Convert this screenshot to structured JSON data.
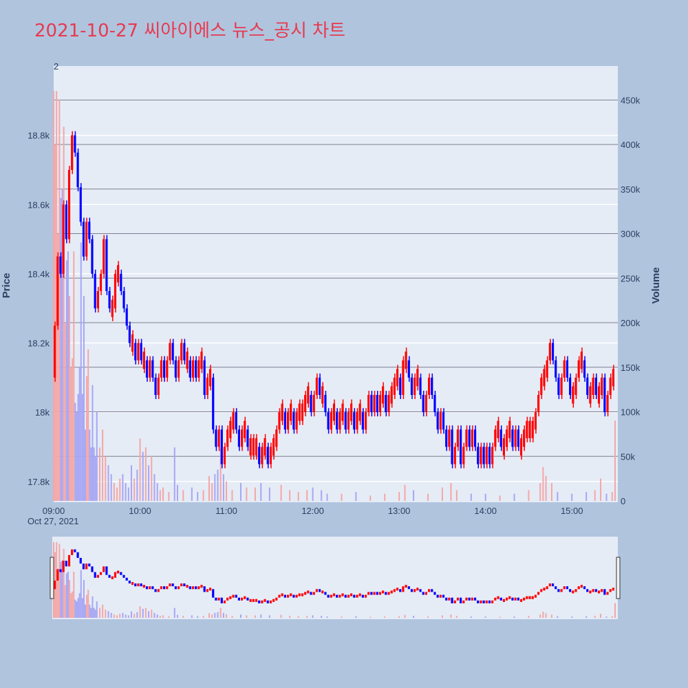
{
  "title": "2021-10-27 씨아이에스 뉴스_공시 차트",
  "colors": {
    "background": "#b0c4de",
    "plot_bg": "#e5ecf6",
    "up": "#ff0000",
    "down": "#0000ff",
    "up_volume": "#f4a6a6",
    "down_volume": "#a6a6f4",
    "title": "#e8394f",
    "grid_secondary": "#7f7f8f"
  },
  "chart_data": {
    "type": "candlestick",
    "title": "2021-10-27 씨아이에스 뉴스_공시 차트",
    "ylabel": "Price",
    "y2label": "Volume",
    "ylim": [
      17740,
      19000
    ],
    "y2lim": [
      0,
      485000
    ],
    "yticks": [
      17800,
      18000,
      18200,
      18400,
      18600,
      18800
    ],
    "ytick_labels": [
      "17.8k",
      "18k",
      "18.2k",
      "18.4k",
      "18.6k",
      "18.8k"
    ],
    "y2ticks": [
      0,
      50000,
      100000,
      150000,
      200000,
      250000,
      300000,
      350000,
      400000,
      450000
    ],
    "y2tick_labels": [
      "0",
      "50k",
      "100k",
      "150k",
      "200k",
      "250k",
      "300k",
      "350k",
      "400k",
      "450k"
    ],
    "xticks": [
      "09:00",
      "10:00",
      "11:00",
      "12:00",
      "13:00",
      "14:00",
      "15:00"
    ],
    "xdate": "Oct 27, 2021",
    "corner_label": "2",
    "xrange_minutes": [
      0,
      390
    ],
    "close_path": [
      [
        0,
        18100
      ],
      [
        2,
        18250
      ],
      [
        4,
        18450
      ],
      [
        6,
        18400
      ],
      [
        8,
        18600
      ],
      [
        10,
        18500
      ],
      [
        12,
        18700
      ],
      [
        14,
        18800
      ],
      [
        16,
        18750
      ],
      [
        18,
        18650
      ],
      [
        20,
        18550
      ],
      [
        22,
        18450
      ],
      [
        24,
        18550
      ],
      [
        26,
        18500
      ],
      [
        28,
        18400
      ],
      [
        30,
        18300
      ],
      [
        32,
        18350
      ],
      [
        34,
        18400
      ],
      [
        36,
        18500
      ],
      [
        38,
        18350
      ],
      [
        40,
        18300
      ],
      [
        42,
        18300
      ],
      [
        44,
        18400
      ],
      [
        46,
        18400
      ],
      [
        48,
        18350
      ],
      [
        50,
        18300
      ],
      [
        52,
        18250
      ],
      [
        54,
        18200
      ],
      [
        56,
        18200
      ],
      [
        58,
        18150
      ],
      [
        60,
        18200
      ],
      [
        62,
        18150
      ],
      [
        64,
        18150
      ],
      [
        66,
        18100
      ],
      [
        68,
        18150
      ],
      [
        70,
        18100
      ],
      [
        72,
        18050
      ],
      [
        74,
        18100
      ],
      [
        76,
        18150
      ],
      [
        78,
        18100
      ],
      [
        80,
        18150
      ],
      [
        82,
        18200
      ],
      [
        84,
        18150
      ],
      [
        86,
        18100
      ],
      [
        88,
        18150
      ],
      [
        90,
        18200
      ],
      [
        92,
        18150
      ],
      [
        94,
        18150
      ],
      [
        96,
        18100
      ],
      [
        98,
        18150
      ],
      [
        100,
        18100
      ],
      [
        102,
        18150
      ],
      [
        104,
        18150
      ],
      [
        106,
        18050
      ],
      [
        108,
        18100
      ],
      [
        110,
        18100
      ],
      [
        112,
        17950
      ],
      [
        114,
        17900
      ],
      [
        116,
        17950
      ],
      [
        118,
        17850
      ],
      [
        120,
        17900
      ],
      [
        122,
        17950
      ],
      [
        124,
        17950
      ],
      [
        126,
        18000
      ],
      [
        128,
        17950
      ],
      [
        130,
        17900
      ],
      [
        132,
        17950
      ],
      [
        134,
        17950
      ],
      [
        136,
        17900
      ],
      [
        138,
        17900
      ],
      [
        140,
        17900
      ],
      [
        142,
        17900
      ],
      [
        144,
        17850
      ],
      [
        146,
        17900
      ],
      [
        148,
        17900
      ],
      [
        150,
        17850
      ],
      [
        152,
        17900
      ],
      [
        154,
        17900
      ],
      [
        156,
        17950
      ],
      [
        158,
        18000
      ],
      [
        160,
        18000
      ],
      [
        162,
        17950
      ],
      [
        164,
        18000
      ],
      [
        166,
        18000
      ],
      [
        168,
        17950
      ],
      [
        170,
        18000
      ],
      [
        172,
        18000
      ],
      [
        174,
        18000
      ],
      [
        176,
        18050
      ],
      [
        178,
        18050
      ],
      [
        180,
        18000
      ],
      [
        182,
        18050
      ],
      [
        184,
        18100
      ],
      [
        186,
        18050
      ],
      [
        188,
        18050
      ],
      [
        190,
        18000
      ],
      [
        192,
        17950
      ],
      [
        194,
        18000
      ],
      [
        196,
        18000
      ],
      [
        198,
        17950
      ],
      [
        200,
        18000
      ],
      [
        202,
        18000
      ],
      [
        204,
        17950
      ],
      [
        206,
        18000
      ],
      [
        208,
        18000
      ],
      [
        210,
        17950
      ],
      [
        212,
        18000
      ],
      [
        214,
        18000
      ],
      [
        216,
        17950
      ],
      [
        218,
        18000
      ],
      [
        220,
        18050
      ],
      [
        222,
        18000
      ],
      [
        224,
        18050
      ],
      [
        226,
        18000
      ],
      [
        228,
        18050
      ],
      [
        230,
        18050
      ],
      [
        232,
        18000
      ],
      [
        234,
        18050
      ],
      [
        236,
        18050
      ],
      [
        238,
        18100
      ],
      [
        240,
        18100
      ],
      [
        242,
        18050
      ],
      [
        244,
        18150
      ],
      [
        246,
        18150
      ],
      [
        248,
        18100
      ],
      [
        250,
        18050
      ],
      [
        252,
        18100
      ],
      [
        254,
        18100
      ],
      [
        256,
        18050
      ],
      [
        258,
        18000
      ],
      [
        260,
        18050
      ],
      [
        262,
        18100
      ],
      [
        264,
        18050
      ],
      [
        266,
        18000
      ],
      [
        268,
        17950
      ],
      [
        270,
        18000
      ],
      [
        272,
        17950
      ],
      [
        274,
        17900
      ],
      [
        276,
        17950
      ],
      [
        278,
        17850
      ],
      [
        280,
        17900
      ],
      [
        282,
        17950
      ],
      [
        284,
        17850
      ],
      [
        286,
        17900
      ],
      [
        288,
        17950
      ],
      [
        290,
        17900
      ],
      [
        292,
        17950
      ],
      [
        294,
        17900
      ],
      [
        296,
        17850
      ],
      [
        298,
        17900
      ],
      [
        300,
        17850
      ],
      [
        302,
        17900
      ],
      [
        304,
        17850
      ],
      [
        306,
        17900
      ],
      [
        308,
        17950
      ],
      [
        310,
        17950
      ],
      [
        312,
        17900
      ],
      [
        314,
        17900
      ],
      [
        316,
        17950
      ],
      [
        318,
        17950
      ],
      [
        320,
        17900
      ],
      [
        322,
        17950
      ],
      [
        324,
        17900
      ],
      [
        326,
        17900
      ],
      [
        328,
        17950
      ],
      [
        330,
        17950
      ],
      [
        332,
        17950
      ],
      [
        334,
        17950
      ],
      [
        336,
        18000
      ],
      [
        338,
        18050
      ],
      [
        340,
        18100
      ],
      [
        342,
        18100
      ],
      [
        344,
        18150
      ],
      [
        346,
        18200
      ],
      [
        348,
        18150
      ],
      [
        350,
        18100
      ],
      [
        352,
        18050
      ],
      [
        354,
        18100
      ],
      [
        356,
        18150
      ],
      [
        358,
        18100
      ],
      [
        360,
        18050
      ],
      [
        362,
        18050
      ],
      [
        364,
        18100
      ],
      [
        366,
        18150
      ],
      [
        368,
        18150
      ],
      [
        370,
        18100
      ],
      [
        372,
        18050
      ],
      [
        374,
        18050
      ],
      [
        376,
        18100
      ],
      [
        378,
        18050
      ],
      [
        380,
        18050
      ],
      [
        382,
        18100
      ],
      [
        384,
        18000
      ],
      [
        386,
        18050
      ],
      [
        388,
        18100
      ],
      [
        390,
        18100
      ]
    ],
    "volume_spikes": [
      [
        0,
        460000
      ],
      [
        1,
        400000
      ],
      [
        2,
        460000
      ],
      [
        3,
        300000
      ],
      [
        4,
        450000
      ],
      [
        5,
        340000
      ],
      [
        6,
        350000
      ],
      [
        7,
        420000
      ],
      [
        8,
        200000
      ],
      [
        9,
        270000
      ],
      [
        10,
        280000
      ],
      [
        11,
        230000
      ],
      [
        12,
        150000
      ],
      [
        13,
        160000
      ],
      [
        14,
        280000
      ],
      [
        15,
        110000
      ],
      [
        16,
        100000
      ],
      [
        17,
        120000
      ],
      [
        18,
        150000
      ],
      [
        19,
        290000
      ],
      [
        20,
        120000
      ],
      [
        21,
        230000
      ],
      [
        22,
        80000
      ],
      [
        23,
        140000
      ],
      [
        24,
        170000
      ],
      [
        25,
        80000
      ],
      [
        26,
        60000
      ],
      [
        27,
        130000
      ],
      [
        28,
        60000
      ],
      [
        29,
        50000
      ],
      [
        30,
        100000
      ],
      [
        32,
        60000
      ],
      [
        34,
        80000
      ],
      [
        36,
        50000
      ],
      [
        38,
        40000
      ],
      [
        40,
        30000
      ],
      [
        42,
        20000
      ],
      [
        44,
        15000
      ],
      [
        46,
        25000
      ],
      [
        48,
        30000
      ],
      [
        50,
        20000
      ],
      [
        52,
        15000
      ],
      [
        54,
        40000
      ],
      [
        56,
        25000
      ],
      [
        58,
        35000
      ],
      [
        60,
        70000
      ],
      [
        62,
        55000
      ],
      [
        64,
        60000
      ],
      [
        66,
        40000
      ],
      [
        68,
        50000
      ],
      [
        70,
        30000
      ],
      [
        72,
        20000
      ],
      [
        74,
        12000
      ],
      [
        76,
        15000
      ],
      [
        80,
        10000
      ],
      [
        84,
        60000
      ],
      [
        86,
        18000
      ],
      [
        90,
        12000
      ],
      [
        96,
        15000
      ],
      [
        100,
        10000
      ],
      [
        104,
        12000
      ],
      [
        108,
        28000
      ],
      [
        110,
        20000
      ],
      [
        112,
        30000
      ],
      [
        114,
        35000
      ],
      [
        116,
        60000
      ],
      [
        118,
        30000
      ],
      [
        120,
        22000
      ],
      [
        124,
        12000
      ],
      [
        130,
        20000
      ],
      [
        134,
        15000
      ],
      [
        140,
        15000
      ],
      [
        144,
        20000
      ],
      [
        150,
        15000
      ],
      [
        158,
        18000
      ],
      [
        164,
        12000
      ],
      [
        170,
        10000
      ],
      [
        176,
        12000
      ],
      [
        180,
        15000
      ],
      [
        186,
        12000
      ],
      [
        190,
        8000
      ],
      [
        200,
        8000
      ],
      [
        210,
        10000
      ],
      [
        220,
        6000
      ],
      [
        230,
        8000
      ],
      [
        240,
        10000
      ],
      [
        244,
        18000
      ],
      [
        250,
        12000
      ],
      [
        260,
        8000
      ],
      [
        270,
        15000
      ],
      [
        276,
        20000
      ],
      [
        280,
        12000
      ],
      [
        290,
        8000
      ],
      [
        300,
        8000
      ],
      [
        310,
        6000
      ],
      [
        320,
        8000
      ],
      [
        330,
        12000
      ],
      [
        338,
        20000
      ],
      [
        340,
        38000
      ],
      [
        342,
        28000
      ],
      [
        346,
        20000
      ],
      [
        350,
        10000
      ],
      [
        360,
        8000
      ],
      [
        370,
        10000
      ],
      [
        376,
        12000
      ],
      [
        380,
        25000
      ],
      [
        384,
        8000
      ],
      [
        388,
        10000
      ],
      [
        390,
        90000
      ]
    ]
  }
}
